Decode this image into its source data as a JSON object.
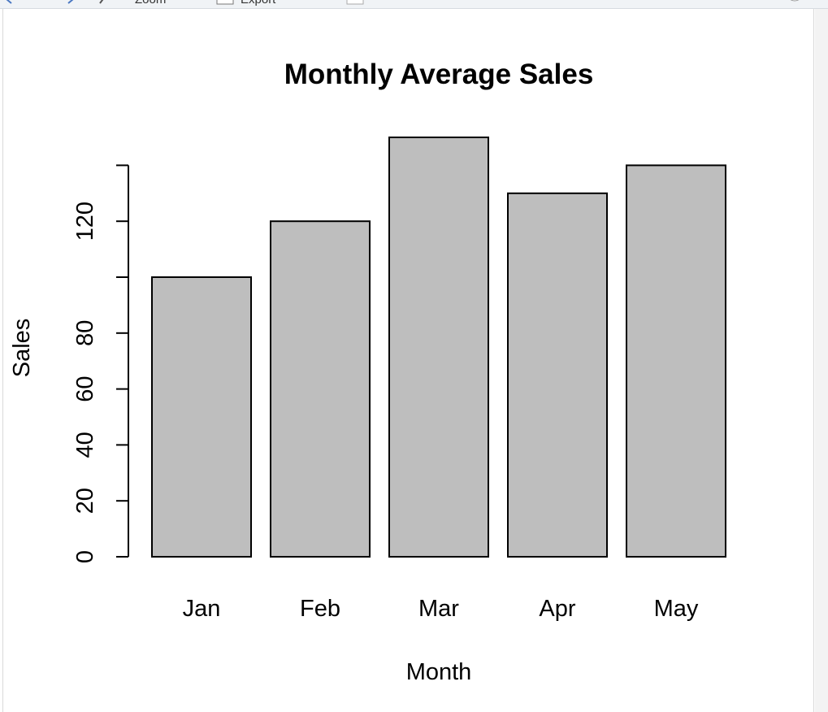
{
  "toolbar": {
    "zoom_label": "Zoom",
    "export_label": "Export",
    "export_icon": "export-icon",
    "back_icon": "back-arrow-icon",
    "forward_icon": "forward-arrow-icon",
    "zoom_icon": "magnifier-icon",
    "delete_icon": "page-icon",
    "broom_icon": "broom-icon",
    "refresh_icon": "refresh-icon",
    "info_icon": "info-icon",
    "accent_color": "#1e88e5"
  },
  "chart_data": {
    "type": "bar",
    "title": "Monthly Average Sales",
    "xlabel": "Month",
    "ylabel": "Sales",
    "categories": [
      "Jan",
      "Feb",
      "Mar",
      "Apr",
      "May"
    ],
    "values": [
      100,
      120,
      150,
      130,
      140
    ],
    "ylim": [
      0,
      160
    ],
    "yticks": [
      0,
      20,
      40,
      60,
      80,
      100,
      120,
      140
    ],
    "ytick_labels": [
      "0",
      "20",
      "40",
      "60",
      "80",
      "",
      "120",
      ""
    ],
    "bar_color": "#bebebe",
    "edge_color": "#000000",
    "grid": false,
    "legend": "none"
  }
}
